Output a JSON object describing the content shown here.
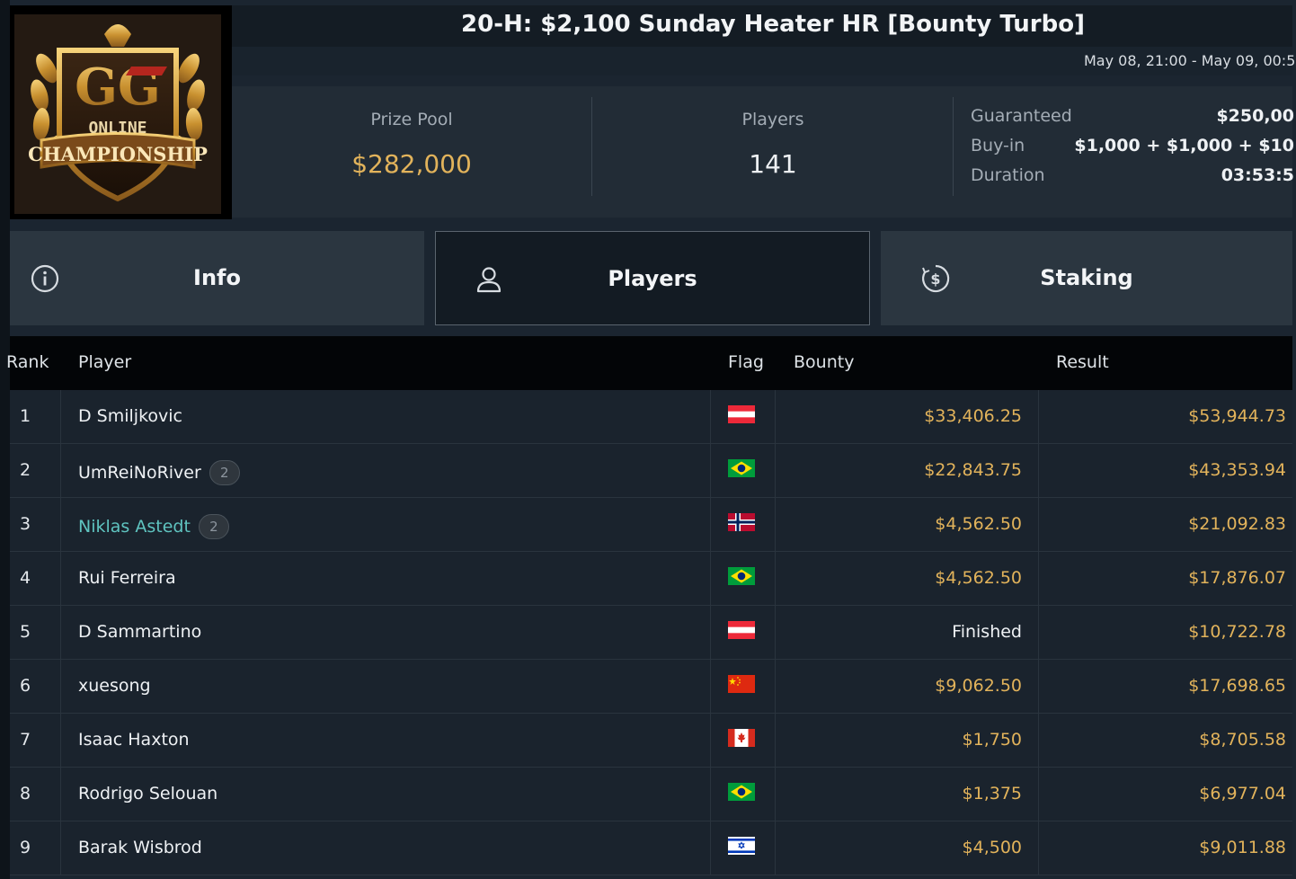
{
  "header": {
    "title": "20-H: $2,100 Sunday Heater HR [Bounty Turbo]",
    "date_range": "May 08, 21:00 - May 09, 00:5"
  },
  "logo": {
    "alt_text": "GG ONLINE CHAMPIONSHIP"
  },
  "stats": {
    "prize_pool_label": "Prize Pool",
    "prize_pool_value": "$282,000",
    "players_label": "Players",
    "players_value": "141"
  },
  "details": [
    {
      "key": "Guaranteed",
      "value": "$250,00"
    },
    {
      "key": "Buy-in",
      "value": "$1,000 + $1,000 + $10"
    },
    {
      "key": "Duration",
      "value": "03:53:5"
    }
  ],
  "tabs": [
    {
      "label": "Info",
      "icon": "info-icon",
      "active": false
    },
    {
      "label": "Players",
      "icon": "user-icon",
      "active": true
    },
    {
      "label": "Staking",
      "icon": "dollar-coin-icon",
      "active": false
    }
  ],
  "table": {
    "headers": {
      "rank": "Rank",
      "player": "Player",
      "flag": "Flag",
      "bounty": "Bounty",
      "result": "Result"
    },
    "rows": [
      {
        "rank": "1",
        "player": "D Smiljkovic",
        "badge": "",
        "link": false,
        "flag": "austria",
        "bounty": "$33,406.25",
        "result": "$53,944.73"
      },
      {
        "rank": "2",
        "player": "UmReiNoRiver",
        "badge": "2",
        "link": false,
        "flag": "brazil",
        "bounty": "$22,843.75",
        "result": "$43,353.94"
      },
      {
        "rank": "3",
        "player": "Niklas Astedt",
        "badge": "2",
        "link": true,
        "flag": "norway",
        "bounty": "$4,562.50",
        "result": "$21,092.83"
      },
      {
        "rank": "4",
        "player": "Rui Ferreira",
        "badge": "",
        "link": false,
        "flag": "brazil",
        "bounty": "$4,562.50",
        "result": "$17,876.07"
      },
      {
        "rank": "5",
        "player": "D Sammartino",
        "badge": "",
        "link": false,
        "flag": "austria",
        "bounty": "Finished",
        "result": "$10,722.78"
      },
      {
        "rank": "6",
        "player": "xuesong",
        "badge": "",
        "link": false,
        "flag": "china",
        "bounty": "$9,062.50",
        "result": "$17,698.65"
      },
      {
        "rank": "7",
        "player": "Isaac Haxton",
        "badge": "",
        "link": false,
        "flag": "canada",
        "bounty": "$1,750",
        "result": "$8,705.58"
      },
      {
        "rank": "8",
        "player": "Rodrigo Selouan",
        "badge": "",
        "link": false,
        "flag": "brazil",
        "bounty": "$1,375",
        "result": "$6,977.04"
      },
      {
        "rank": "9",
        "player": "Barak Wisbrod",
        "badge": "",
        "link": false,
        "flag": "israel",
        "bounty": "$4,500",
        "result": "$9,011.88"
      }
    ]
  },
  "colors": {
    "gold": "#e2b35b",
    "link": "#5fc4c0",
    "background": "#1b2530"
  }
}
